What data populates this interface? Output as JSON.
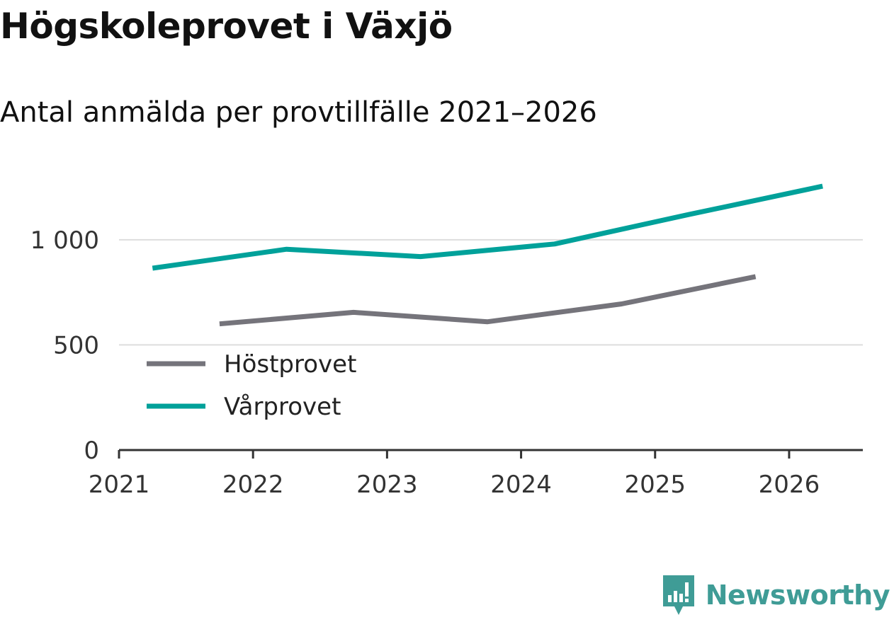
{
  "chart_data": {
    "type": "line",
    "title": "Högskoleprovet i Växjö",
    "subtitle": "Antal anmälda per provtillfälle 2021–2026",
    "xlabel": "",
    "ylabel": "",
    "xlim": [
      2021,
      2026.55
    ],
    "ylim": [
      0,
      1400
    ],
    "x_ticks": [
      {
        "value": 2021,
        "label": "2021"
      },
      {
        "value": 2022,
        "label": "2022"
      },
      {
        "value": 2023,
        "label": "2023"
      },
      {
        "value": 2024,
        "label": "2024"
      },
      {
        "value": 2025,
        "label": "2025"
      },
      {
        "value": 2026,
        "label": "2026"
      }
    ],
    "y_ticks": [
      {
        "value": 0,
        "label": "0"
      },
      {
        "value": 500,
        "label": "500"
      },
      {
        "value": 1000,
        "label": "1 000"
      }
    ],
    "grid": true,
    "legend_position": "bottom-left",
    "series": [
      {
        "name": "Höstprovet",
        "color": "#75747b",
        "points": [
          {
            "x": 2021.75,
            "y": 600
          },
          {
            "x": 2022.75,
            "y": 655
          },
          {
            "x": 2023.75,
            "y": 610
          },
          {
            "x": 2024.75,
            "y": 695
          },
          {
            "x": 2025.75,
            "y": 825
          }
        ]
      },
      {
        "name": "Vårprovet",
        "color": "#00a19a",
        "points": [
          {
            "x": 2021.25,
            "y": 865
          },
          {
            "x": 2022.25,
            "y": 955
          },
          {
            "x": 2023.25,
            "y": 920
          },
          {
            "x": 2024.25,
            "y": 980
          },
          {
            "x": 2025.25,
            "y": 1120
          },
          {
            "x": 2026.25,
            "y": 1255
          }
        ]
      }
    ]
  },
  "brand": {
    "name": "Newsworthy",
    "color": "#3f9c96"
  },
  "colors": {
    "grid": "#dddddd",
    "axis": "#333333"
  }
}
